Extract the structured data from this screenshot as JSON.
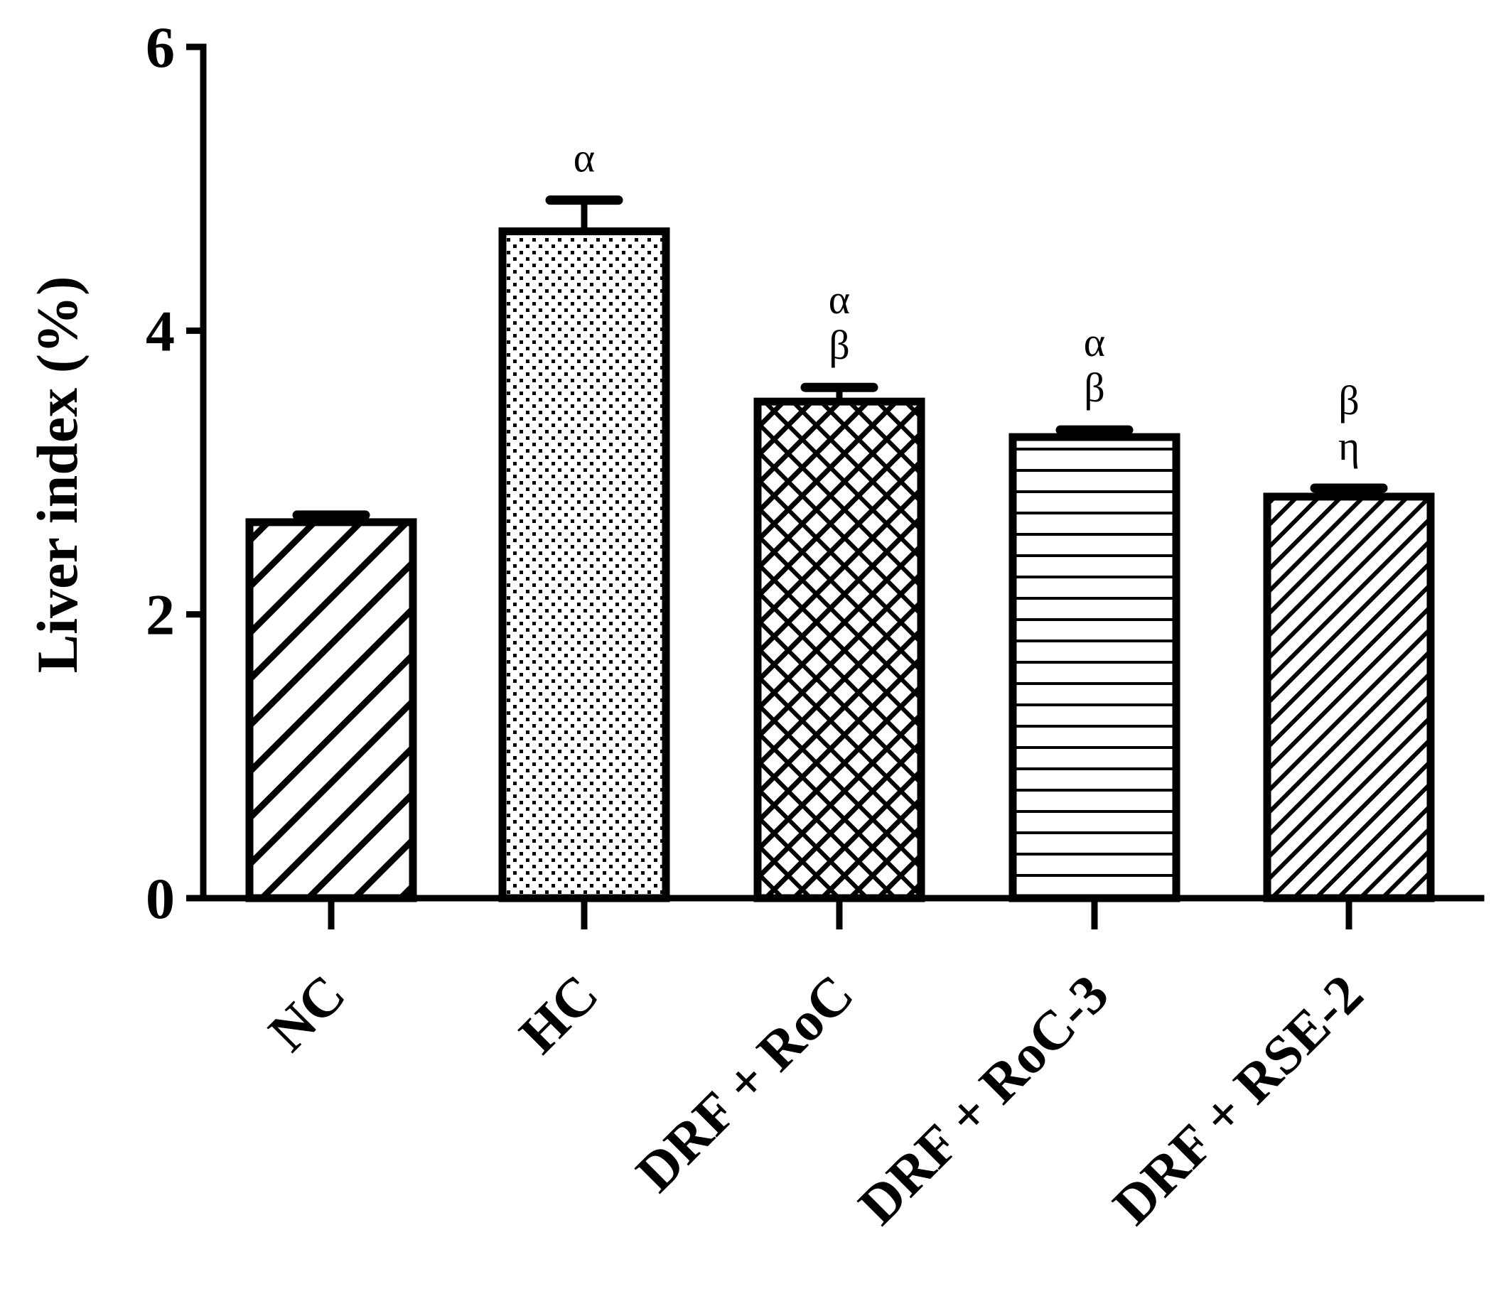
{
  "chart_data": {
    "type": "bar",
    "title": "",
    "xlabel": "",
    "ylabel": "Liver index (%)",
    "ylim": [
      0,
      6
    ],
    "yticks": [
      0,
      2,
      4,
      6
    ],
    "grid": false,
    "legend": "none",
    "categories": [
      "NC",
      "HC",
      "DRF + RoC",
      "DRF + RoC-3",
      "DRF + RSE-2"
    ],
    "values": [
      2.65,
      4.7,
      3.5,
      3.25,
      2.83
    ],
    "errors": [
      0.05,
      0.22,
      0.1,
      0.05,
      0.06
    ],
    "significance": [
      [],
      [
        "α"
      ],
      [
        "α",
        "β"
      ],
      [
        "α",
        "β"
      ],
      [
        "β",
        "η"
      ]
    ],
    "patterns": [
      "wide-diagonal",
      "dots",
      "crosshatch",
      "horizontal-lines",
      "fine-diagonal"
    ],
    "colors": {
      "stroke": "#000000",
      "fill": "#ffffff"
    }
  }
}
